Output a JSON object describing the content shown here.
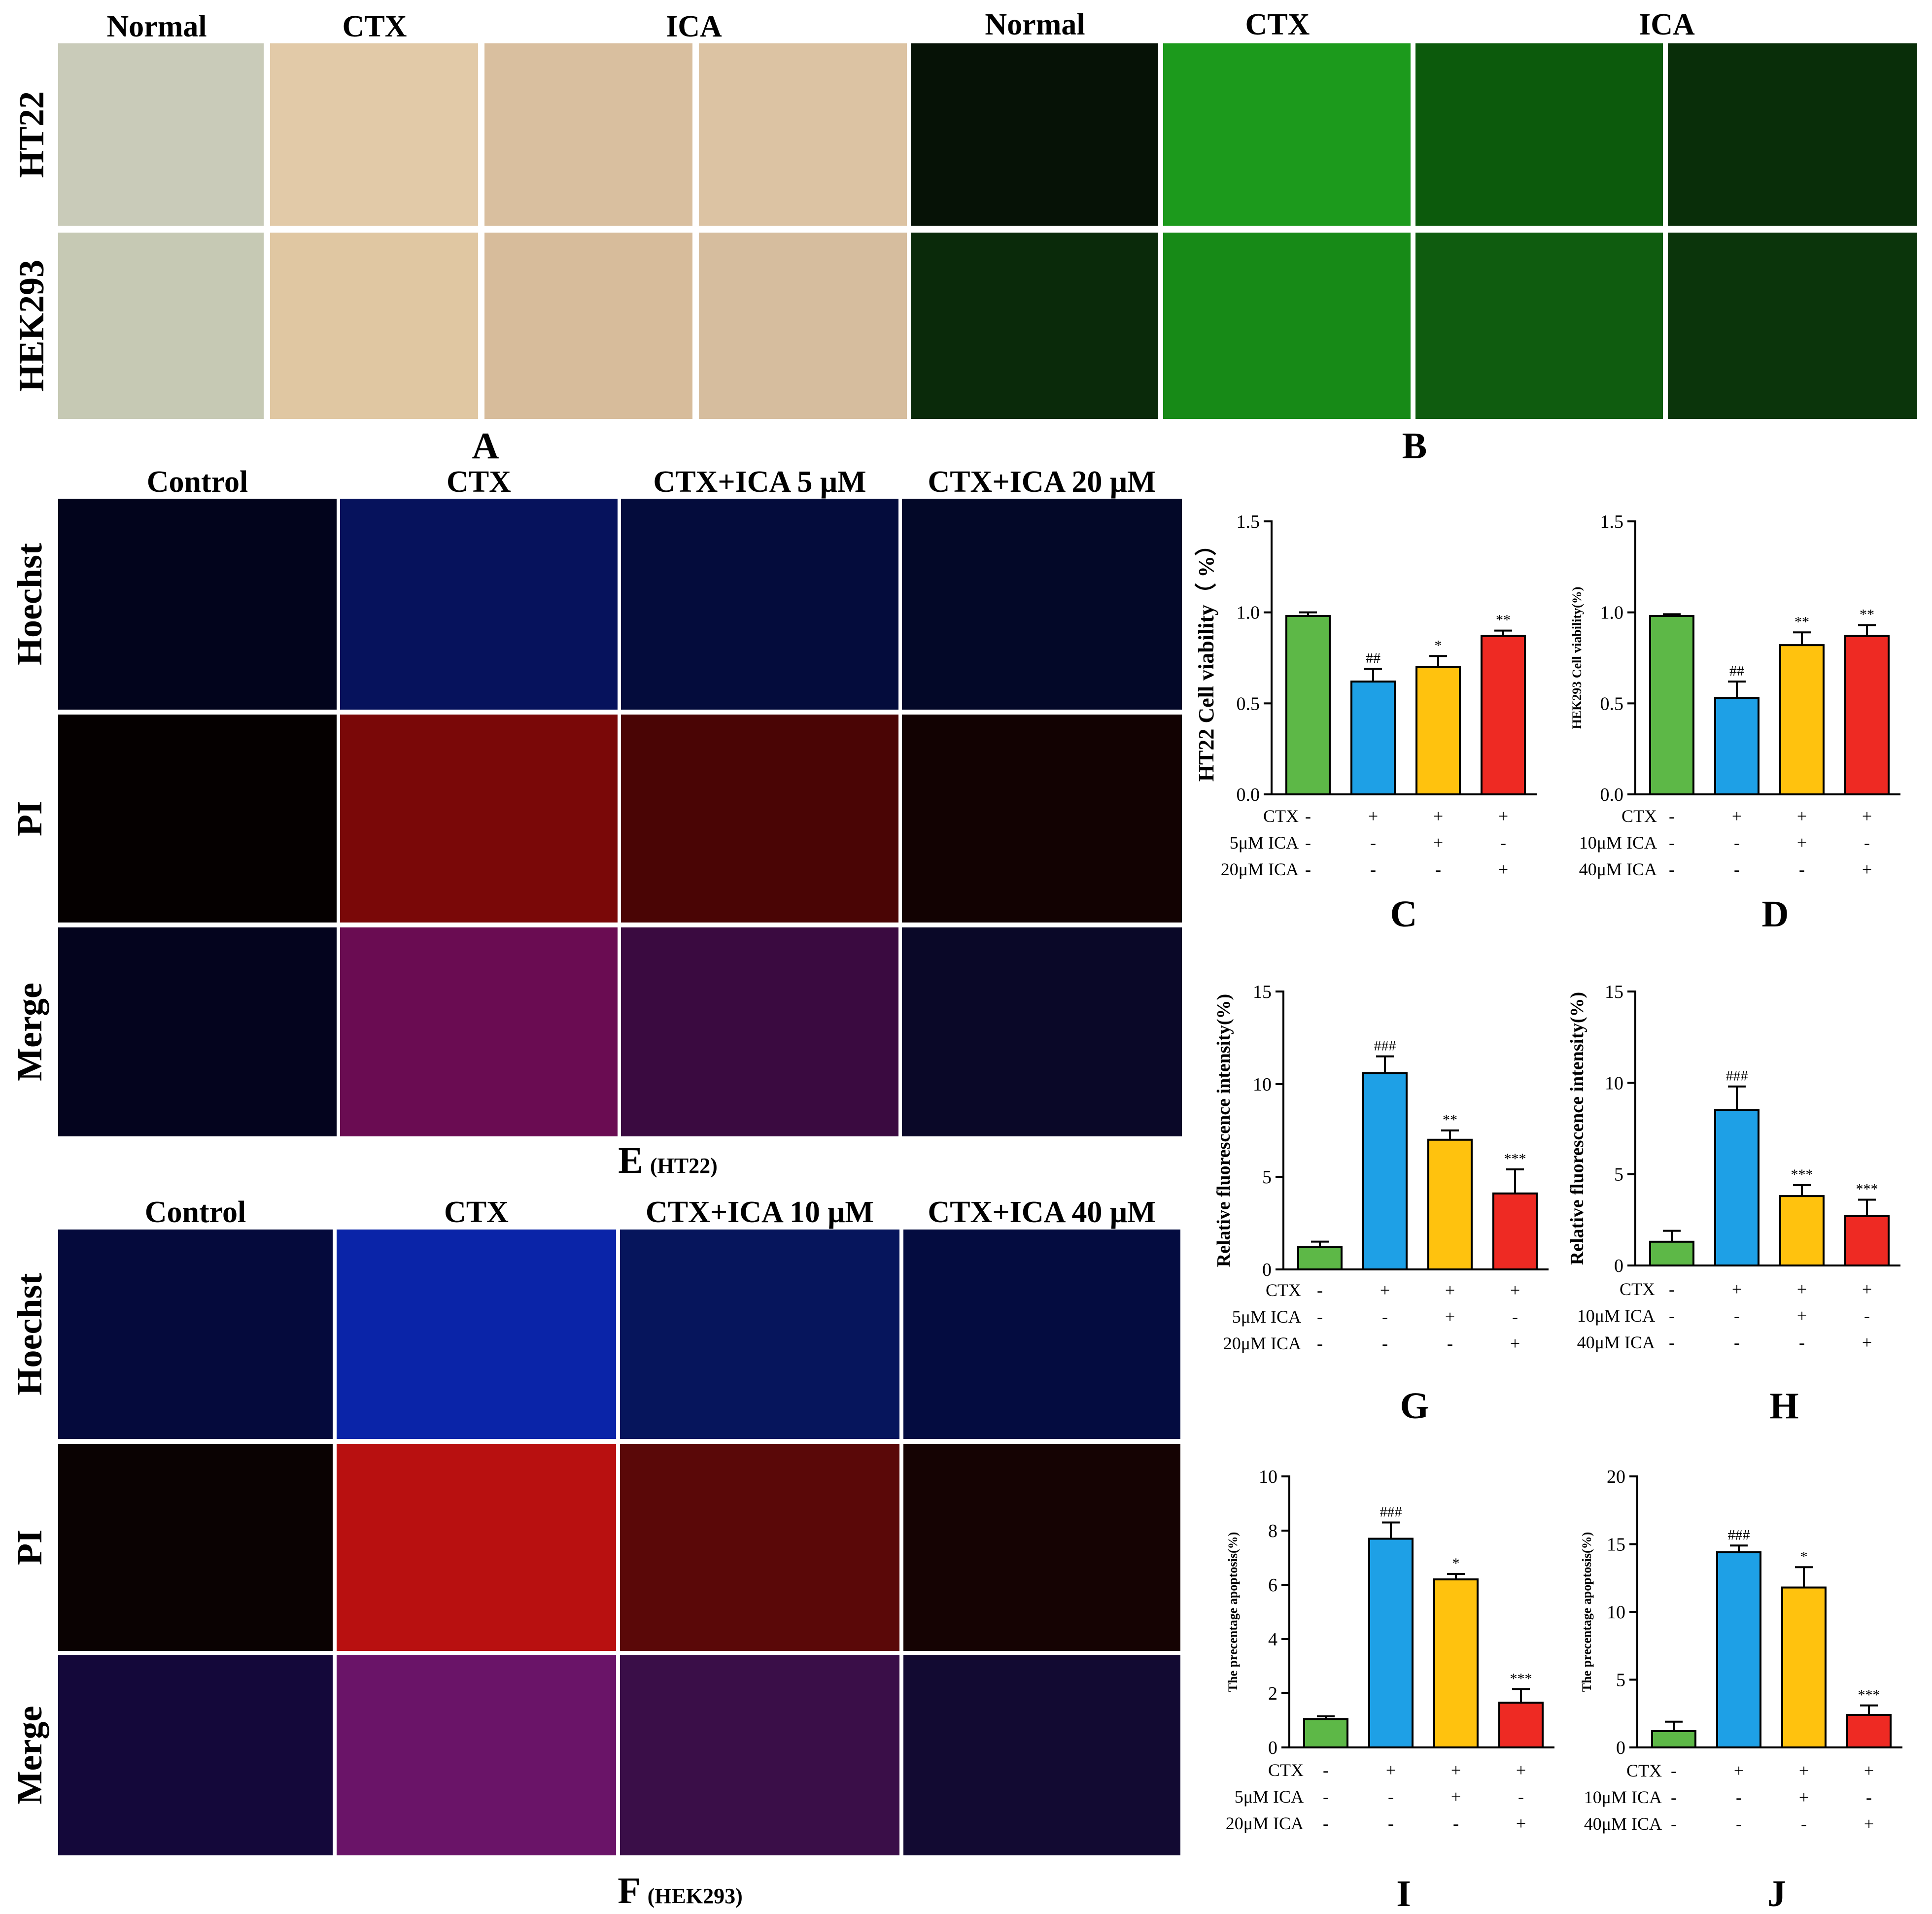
{
  "panel_A": {
    "label": "A",
    "columns": [
      "Normal",
      "CTX",
      "ICA"
    ],
    "rows": [
      "HT22",
      "HEK293"
    ],
    "colors": [
      "#c9cbb9",
      "#e2caa8",
      "#d9bf9f",
      "#dcc3a3",
      "#c6c9b4",
      "#e0c7a2",
      "#d7bc9b",
      "#d6bd9e"
    ]
  },
  "panel_B": {
    "label": "B",
    "columns": [
      "Normal",
      "CTX",
      "ICA"
    ],
    "colors": [
      "#061206",
      "#1c9a1c",
      "#0c5a0c",
      "#092e09",
      "#0a2a0a",
      "#178a17",
      "#0f5c0f",
      "#0b350b"
    ]
  },
  "panel_E": {
    "label": "E",
    "sublabel": "(HT22)",
    "columns": [
      "Control",
      "CTX",
      "CTX+ICA 5 μM",
      "CTX+ICA 20 μM"
    ],
    "rows": [
      "Hoechst",
      "PI",
      "Merge"
    ],
    "colors": [
      [
        "#02041c",
        "#06125c",
        "#040c3c",
        "#030828"
      ],
      [
        "#050000",
        "#7a0808",
        "#4a0505",
        "#120202"
      ],
      [
        "#04041e",
        "#6a0c52",
        "#3a0a40",
        "#0a0828"
      ]
    ]
  },
  "panel_F": {
    "label": "F",
    "sublabel": "(HEK293)",
    "columns": [
      "Control",
      "CTX",
      "CTX+ICA 10 μM",
      "CTX+ICA 40 μM"
    ],
    "rows": [
      "Hoechst",
      "PI",
      "Merge"
    ],
    "colors": [
      [
        "#050a3c",
        "#0a24a8",
        "#06155c",
        "#040c40"
      ],
      [
        "#0a0202",
        "#b81010",
        "#5a0808",
        "#150303"
      ],
      [
        "#14083a",
        "#6a1468",
        "#3a0e48",
        "#120a32"
      ]
    ]
  },
  "charts": [
    {
      "label": "C",
      "type": "bar",
      "ylabel": "HT22 Cell viability（ %）",
      "ylim": [
        0,
        1.5
      ],
      "yticks": [
        "0.0",
        "0.5",
        "1.0",
        "1.5"
      ],
      "values": [
        0.98,
        0.62,
        0.7,
        0.87
      ],
      "errors": [
        0.02,
        0.07,
        0.06,
        0.03
      ],
      "sig": [
        "",
        "##",
        "*",
        "**"
      ],
      "colors": [
        "#5db847",
        "#1ea0e6",
        "#ffc20e",
        "#ee2a23"
      ],
      "table_rows": [
        {
          "name": "CTX",
          "marks": [
            "-",
            "+",
            "+",
            "+"
          ]
        },
        {
          "name": "5μM ICA",
          "marks": [
            "-",
            "-",
            "+",
            "-"
          ]
        },
        {
          "name": "20μM ICA",
          "marks": [
            "-",
            "-",
            "-",
            "+"
          ]
        }
      ]
    },
    {
      "label": "D",
      "type": "bar",
      "ylabel": "HEK293 Cell viability(%)",
      "ylim": [
        0,
        1.5
      ],
      "yticks": [
        "0.0",
        "0.5",
        "1.0",
        "1.5"
      ],
      "values": [
        0.98,
        0.53,
        0.82,
        0.87
      ],
      "errors": [
        0.01,
        0.09,
        0.07,
        0.06
      ],
      "sig": [
        "",
        "##",
        "**",
        "**"
      ],
      "colors": [
        "#5db847",
        "#1ea0e6",
        "#ffc20e",
        "#ee2a23"
      ],
      "table_rows": [
        {
          "name": "CTX",
          "marks": [
            "-",
            "+",
            "+",
            "+"
          ]
        },
        {
          "name": "10μM ICA",
          "marks": [
            "-",
            "-",
            "+",
            "-"
          ]
        },
        {
          "name": "40μM ICA",
          "marks": [
            "-",
            "-",
            "-",
            "+"
          ]
        }
      ]
    },
    {
      "label": "G",
      "type": "bar",
      "ylabel": "Relative fluorescence intensity(%)",
      "ylim": [
        0,
        15
      ],
      "yticks": [
        "0",
        "5",
        "10",
        "15"
      ],
      "values": [
        1.2,
        10.6,
        7.0,
        4.1
      ],
      "errors": [
        0.3,
        0.9,
        0.5,
        1.3
      ],
      "sig": [
        "",
        "###",
        "**",
        "***"
      ],
      "colors": [
        "#5db847",
        "#1ea0e6",
        "#ffc20e",
        "#ee2a23"
      ],
      "table_rows": [
        {
          "name": "CTX",
          "marks": [
            "-",
            "+",
            "+",
            "+"
          ]
        },
        {
          "name": "5μM ICA",
          "marks": [
            "-",
            "-",
            "+",
            "-"
          ]
        },
        {
          "name": "20μM ICA",
          "marks": [
            "-",
            "-",
            "-",
            "+"
          ]
        }
      ]
    },
    {
      "label": "H",
      "type": "bar",
      "ylabel": "Relative fluorescence intensity(%)",
      "ylim": [
        0,
        15
      ],
      "yticks": [
        "0",
        "5",
        "10",
        "15"
      ],
      "values": [
        1.3,
        8.5,
        3.8,
        2.7
      ],
      "errors": [
        0.6,
        1.3,
        0.6,
        0.9
      ],
      "sig": [
        "",
        "###",
        "***",
        "***"
      ],
      "colors": [
        "#5db847",
        "#1ea0e6",
        "#ffc20e",
        "#ee2a23"
      ],
      "table_rows": [
        {
          "name": "CTX",
          "marks": [
            "-",
            "+",
            "+",
            "+"
          ]
        },
        {
          "name": "10μM ICA",
          "marks": [
            "-",
            "-",
            "+",
            "-"
          ]
        },
        {
          "name": "40μM ICA",
          "marks": [
            "-",
            "-",
            "-",
            "+"
          ]
        }
      ]
    },
    {
      "label": "I",
      "type": "bar",
      "ylabel": "The precentage apoptosis(%)",
      "ylim": [
        0,
        10
      ],
      "yticks": [
        "0",
        "2",
        "4",
        "6",
        "8",
        "10"
      ],
      "values": [
        1.05,
        7.7,
        6.2,
        1.65
      ],
      "errors": [
        0.1,
        0.6,
        0.2,
        0.5
      ],
      "sig": [
        "",
        "###",
        "*",
        "***"
      ],
      "colors": [
        "#5db847",
        "#1ea0e6",
        "#ffc20e",
        "#ee2a23"
      ],
      "table_rows": [
        {
          "name": "CTX",
          "marks": [
            "-",
            "+",
            "+",
            "+"
          ]
        },
        {
          "name": "5μM ICA",
          "marks": [
            "-",
            "-",
            "+",
            "-"
          ]
        },
        {
          "name": "20μM ICA",
          "marks": [
            "-",
            "-",
            "-",
            "+"
          ]
        }
      ]
    },
    {
      "label": "J",
      "type": "bar",
      "ylabel": "The precentage apoptosis(%)",
      "ylim": [
        0,
        20
      ],
      "yticks": [
        "0",
        "5",
        "10",
        "15",
        "20"
      ],
      "values": [
        1.2,
        14.4,
        11.8,
        2.4
      ],
      "errors": [
        0.7,
        0.5,
        1.5,
        0.7
      ],
      "sig": [
        "",
        "###",
        "*",
        "***"
      ],
      "colors": [
        "#5db847",
        "#1ea0e6",
        "#ffc20e",
        "#ee2a23"
      ],
      "table_rows": [
        {
          "name": "CTX",
          "marks": [
            "-",
            "+",
            "+",
            "+"
          ]
        },
        {
          "name": "10μM ICA",
          "marks": [
            "-",
            "-",
            "+",
            "-"
          ]
        },
        {
          "name": "40μM ICA",
          "marks": [
            "-",
            "-",
            "-",
            "+"
          ]
        }
      ]
    }
  ]
}
